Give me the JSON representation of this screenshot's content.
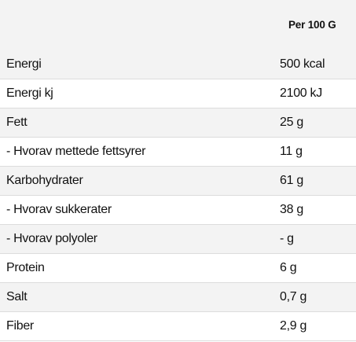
{
  "header": {
    "per_label": "Per 100 G"
  },
  "rows": [
    {
      "label": "Energi",
      "value": "500 kcal"
    },
    {
      "label": "Energi kj",
      "value": "2100 kJ"
    },
    {
      "label": "Fett",
      "value": "25 g"
    },
    {
      "label": "- Hvorav mettede fettsyrer",
      "value": "11 g"
    },
    {
      "label": "Karbohydrater",
      "value": "61 g"
    },
    {
      "label": "- Hvorav sukkerater",
      "value": "38 g"
    },
    {
      "label": "- Hvorav polyoler",
      "value": "- g"
    },
    {
      "label": "Protein",
      "value": "6 g"
    },
    {
      "label": "Salt",
      "value": "0,7 g"
    },
    {
      "label": "Fiber",
      "value": "2,9 g"
    }
  ]
}
